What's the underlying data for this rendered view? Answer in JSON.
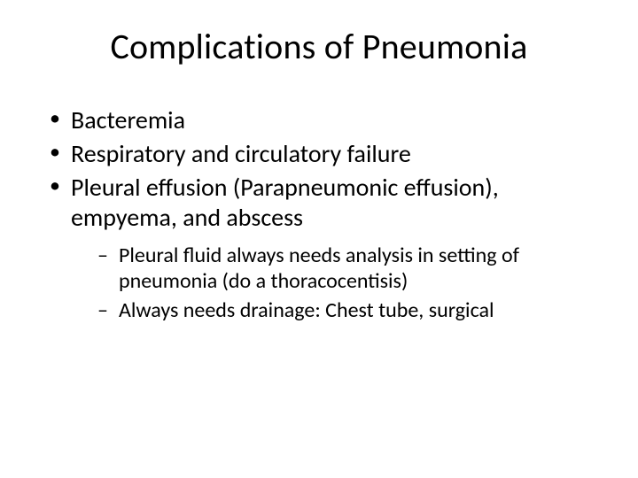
{
  "slide": {
    "title": "Complications of Pneumonia",
    "title_fontsize": 40,
    "body_fontsize_l1": 28,
    "body_fontsize_l2": 24,
    "text_color": "#000000",
    "background_color": "#ffffff",
    "bullets": [
      {
        "text": "Bacteremia"
      },
      {
        "text": "Respiratory and circulatory failure"
      },
      {
        "text": "Pleural effusion (Parapneumonic effusion), empyema, and abscess",
        "sub": [
          {
            "text": "Pleural fluid always needs analysis in setting of pneumonia (do a thoracocentisis)"
          },
          {
            "text": "Always needs drainage: Chest tube, surgical"
          }
        ]
      }
    ]
  }
}
